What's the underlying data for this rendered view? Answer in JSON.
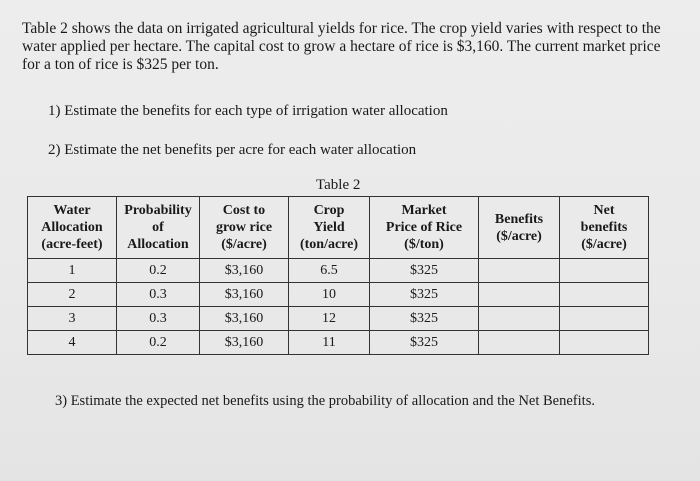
{
  "intro": "Table 2 shows the data on irrigated agricultural yields for rice. The crop yield varies with respect to the water applied per hectare. The capital cost to grow a hectare of rice is $3,160. The current market price for a ton of rice is $325 per ton.",
  "questions": {
    "q1": "1)  Estimate the benefits for each type of irrigation water allocation",
    "q2": "2)  Estimate the net benefits per acre for each water allocation",
    "q3": "3)  Estimate the expected net benefits using the probability of allocation and the Net Benefits."
  },
  "table": {
    "caption": "Table 2",
    "headers": [
      [
        "Water",
        "Allocation",
        "(acre-feet)"
      ],
      [
        "Probability",
        "of",
        "Allocation"
      ],
      [
        "Cost to",
        "grow rice",
        "($/acre)"
      ],
      [
        "Crop",
        "Yield",
        "(ton/acre)"
      ],
      [
        "Market",
        "Price of Rice",
        "($/ton)"
      ],
      [
        "Benefits",
        "($/acre)",
        ""
      ],
      [
        "Net",
        "benefits",
        "($/acre)"
      ]
    ],
    "rows": [
      [
        "1",
        "0.2",
        "$3,160",
        "6.5",
        "$325",
        "",
        ""
      ],
      [
        "2",
        "0.3",
        "$3,160",
        "10",
        "$325",
        "",
        ""
      ],
      [
        "3",
        "0.3",
        "$3,160",
        "12",
        "$325",
        "",
        ""
      ],
      [
        "4",
        "0.2",
        "$3,160",
        "11",
        "$325",
        "",
        ""
      ]
    ]
  }
}
